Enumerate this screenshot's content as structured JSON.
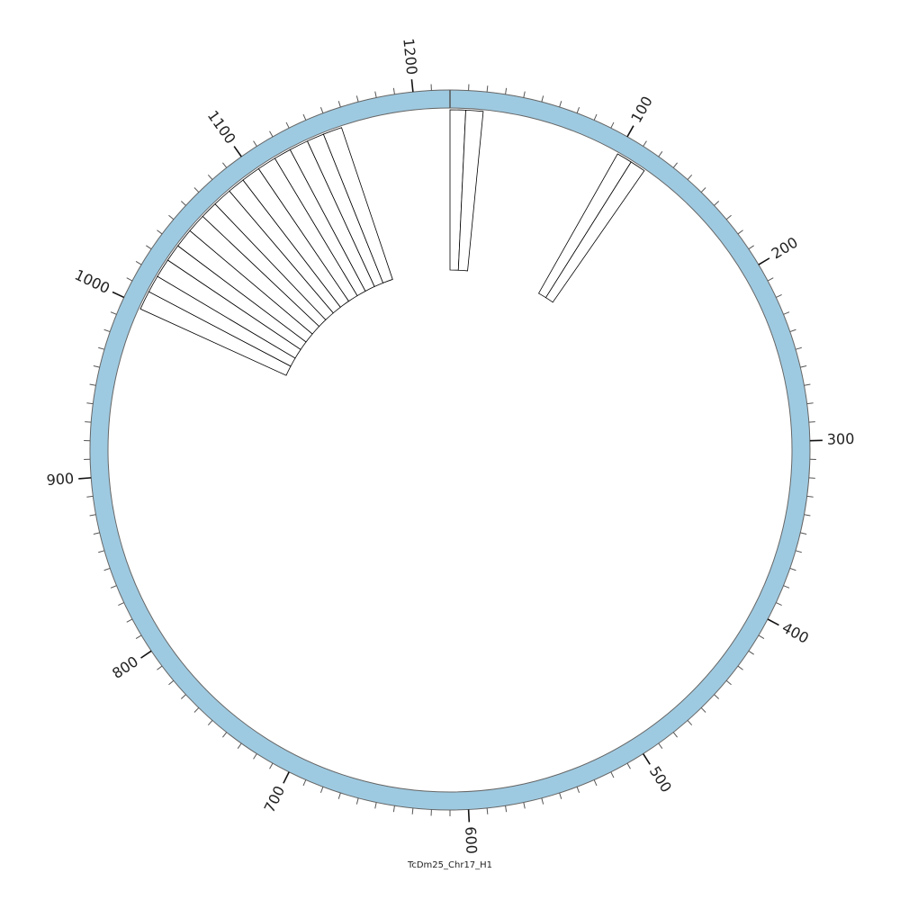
{
  "chart_data": {
    "type": "circular",
    "title": "TcDm25_Chr17_H1",
    "xlim": [
      0,
      1220
    ],
    "xticks": [
      100,
      200,
      300,
      400,
      500,
      600,
      700,
      800,
      900,
      1000,
      1100,
      1200
    ],
    "minor_xticks": [
      10,
      20,
      30,
      40,
      50,
      60,
      70,
      80,
      90,
      110,
      120,
      130,
      140,
      150,
      160,
      170,
      180,
      190,
      210,
      220,
      230,
      240,
      250,
      260,
      270,
      280,
      290,
      310,
      320,
      330,
      340,
      350,
      360,
      370,
      380,
      390,
      410,
      420,
      430,
      440,
      450,
      460,
      470,
      480,
      490,
      510,
      520,
      530,
      540,
      550,
      560,
      570,
      580,
      590,
      610,
      620,
      630,
      640,
      650,
      660,
      670,
      680,
      690,
      710,
      720,
      730,
      740,
      750,
      760,
      770,
      780,
      790,
      810,
      820,
      830,
      840,
      850,
      860,
      870,
      880,
      890,
      910,
      920,
      930,
      940,
      950,
      960,
      970,
      980,
      990,
      1010,
      1020,
      1030,
      1040,
      1050,
      1060,
      1070,
      1080,
      1090,
      1110,
      1120,
      1130,
      1140,
      1150,
      1160,
      1170,
      1180,
      1190,
      1210
    ],
    "ring_color": "#9ecae1",
    "segments": [
      {
        "start": 0,
        "end": 9
      },
      {
        "start": 9,
        "end": 19
      },
      {
        "start": 100,
        "end": 109
      },
      {
        "start": 109,
        "end": 118
      },
      {
        "start": 998,
        "end": 1009
      },
      {
        "start": 1009,
        "end": 1019
      },
      {
        "start": 1019,
        "end": 1030
      },
      {
        "start": 1030,
        "end": 1040
      },
      {
        "start": 1040,
        "end": 1051
      },
      {
        "start": 1051,
        "end": 1062
      },
      {
        "start": 1062,
        "end": 1072
      },
      {
        "start": 1072,
        "end": 1083
      },
      {
        "start": 1083,
        "end": 1093
      },
      {
        "start": 1093,
        "end": 1104
      },
      {
        "start": 1104,
        "end": 1115
      },
      {
        "start": 1115,
        "end": 1125
      },
      {
        "start": 1125,
        "end": 1136
      },
      {
        "start": 1136,
        "end": 1146
      },
      {
        "start": 1146,
        "end": 1157
      }
    ]
  }
}
